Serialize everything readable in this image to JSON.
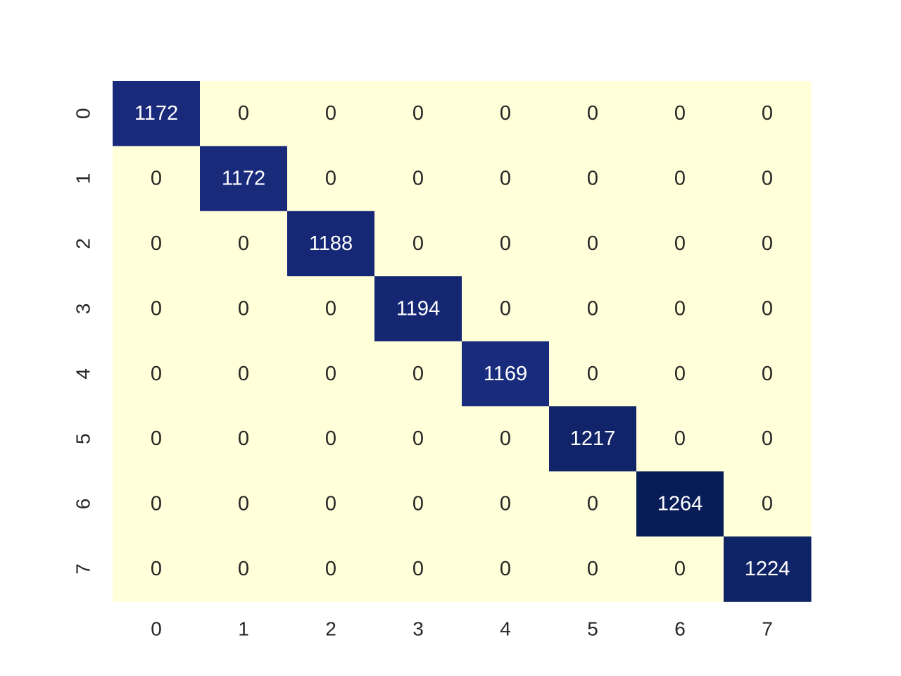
{
  "chart_data": {
    "type": "heatmap",
    "title": "",
    "xlabel": "",
    "ylabel": "",
    "x_tick_labels": [
      "0",
      "1",
      "2",
      "3",
      "4",
      "5",
      "6",
      "7"
    ],
    "y_tick_labels": [
      "0",
      "1",
      "2",
      "3",
      "4",
      "5",
      "6",
      "7"
    ],
    "matrix": [
      [
        1172,
        0,
        0,
        0,
        0,
        0,
        0,
        0
      ],
      [
        0,
        1172,
        0,
        0,
        0,
        0,
        0,
        0
      ],
      [
        0,
        0,
        1188,
        0,
        0,
        0,
        0,
        0
      ],
      [
        0,
        0,
        0,
        1194,
        0,
        0,
        0,
        0
      ],
      [
        0,
        0,
        0,
        0,
        1169,
        0,
        0,
        0
      ],
      [
        0,
        0,
        0,
        0,
        0,
        1217,
        0,
        0
      ],
      [
        0,
        0,
        0,
        0,
        0,
        0,
        1264,
        0
      ],
      [
        0,
        0,
        0,
        0,
        0,
        0,
        0,
        1224
      ]
    ],
    "colormap": "YlGnBu",
    "color_low": "#ffffd9",
    "color_high": "#081d58",
    "annotations": true,
    "colorbar": false,
    "grid": false
  }
}
